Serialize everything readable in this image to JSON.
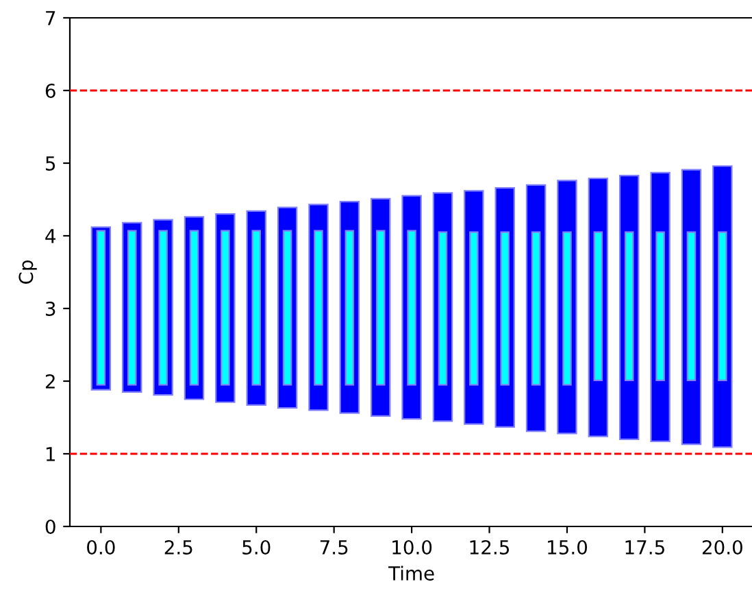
{
  "chart_data": {
    "type": "bar",
    "xlabel": "Time",
    "ylabel": "Cp",
    "x": [
      0,
      1,
      2,
      3,
      4,
      5,
      6,
      7,
      8,
      9,
      10,
      11,
      12,
      13,
      14,
      15,
      16,
      17,
      18,
      19,
      20
    ],
    "series": [
      {
        "color": "#0000ff",
        "base": [
          1.88,
          1.85,
          1.81,
          1.75,
          1.71,
          1.67,
          1.63,
          1.6,
          1.56,
          1.52,
          1.48,
          1.45,
          1.41,
          1.37,
          1.31,
          1.28,
          1.24,
          1.2,
          1.17,
          1.13,
          1.09
        ],
        "values": [
          2.24,
          2.33,
          2.41,
          2.51,
          2.59,
          2.67,
          2.76,
          2.83,
          2.91,
          2.99,
          3.07,
          3.14,
          3.21,
          3.29,
          3.39,
          3.48,
          3.55,
          3.63,
          3.7,
          3.78,
          3.87
        ]
      },
      {
        "color": "#00ffff",
        "base": [
          1.95,
          1.95,
          1.95,
          1.95,
          1.95,
          1.95,
          1.95,
          1.95,
          1.95,
          1.95,
          1.95,
          1.95,
          1.95,
          1.95,
          1.95,
          1.95,
          2.01,
          2.01,
          2.01,
          2.01,
          2.01
        ],
        "values": [
          2.12,
          2.12,
          2.12,
          2.12,
          2.12,
          2.12,
          2.12,
          2.12,
          2.12,
          2.12,
          2.12,
          2.1,
          2.1,
          2.1,
          2.1,
          2.1,
          2.04,
          2.04,
          2.04,
          2.04,
          2.04
        ]
      }
    ],
    "xlim": [
      -1,
      21
    ],
    "xticks": [
      {
        "value": 0,
        "label": "0.0"
      },
      {
        "value": 2.5,
        "label": "2.5"
      },
      {
        "value": 5,
        "label": "5.0"
      },
      {
        "value": 7.5,
        "label": "7.5"
      },
      {
        "value": 10,
        "label": "10.0"
      },
      {
        "value": 12.5,
        "label": "12.5"
      },
      {
        "value": 15,
        "label": "15.0"
      },
      {
        "value": 17.5,
        "label": "17.5"
      },
      {
        "value": 20,
        "label": "20.0"
      }
    ],
    "ylim": [
      0,
      7
    ],
    "yticks": [
      0,
      1,
      2,
      3,
      4,
      5,
      6,
      7
    ],
    "ref_lines": [
      {
        "axis": "y",
        "value": 6,
        "color": "#ff0000",
        "line_style": "dashed"
      },
      {
        "axis": "y",
        "value": 1,
        "color": "#ff0000",
        "line_style": "dashed"
      }
    ],
    "grid": false,
    "legend": false
  }
}
